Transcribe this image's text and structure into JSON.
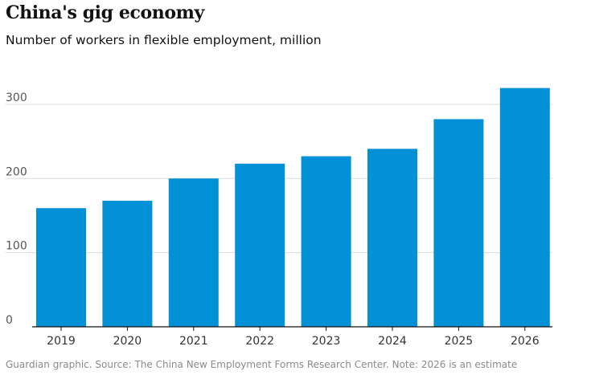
{
  "title": "China's gig economy",
  "subtitle": "Number of workers in flexible employment, million",
  "source": "Guardian graphic. Source: The China New Employment Forms Research Center. Note: 2026 is an estimate",
  "colors": {
    "bar": "#0290d6",
    "grid": "#dcdcdc",
    "axis": "#121212"
  },
  "chart_data": {
    "type": "bar",
    "title": "China's gig economy",
    "subtitle": "Number of workers in flexible employment, million",
    "categories": [
      "2019",
      "2020",
      "2021",
      "2022",
      "2023",
      "2024",
      "2025",
      "2026"
    ],
    "values": [
      160,
      170,
      200,
      220,
      230,
      240,
      280,
      322
    ],
    "ylim": [
      0,
      322
    ],
    "yticks": [
      0,
      100,
      200,
      300
    ],
    "grid": true,
    "legend": "none"
  }
}
